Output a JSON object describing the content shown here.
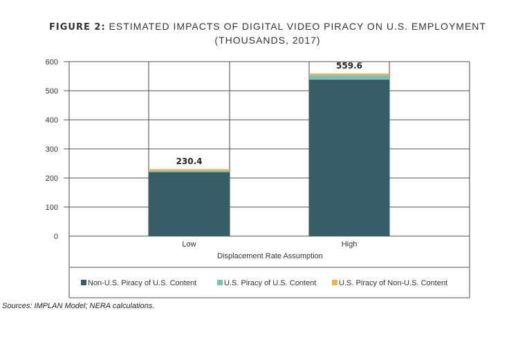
{
  "title": {
    "prefix": "FIGURE 2:",
    "line1": "ESTIMATED IMPACTS OF DIGITAL VIDEO PIRACY ON U.S. EMPLOYMENT",
    "line2": "(THOUSANDS, 2017)"
  },
  "source": "Sources: IMPLAN Model; NERA calculations.",
  "chart_data": {
    "type": "stacked-bar",
    "title": "ESTIMATED IMPACTS OF DIGITAL VIDEO PIRACY ON U.S. EMPLOYMENT (THOUSANDS, 2017)",
    "xlabel": "Displacement Rate Assumption",
    "ylabel": "",
    "ylim": [
      0,
      600
    ],
    "yticks": [
      0,
      100,
      200,
      300,
      400,
      500,
      600
    ],
    "grid": true,
    "legend": "bottom",
    "categories": [
      "Low",
      "High"
    ],
    "totals": [
      "230.4",
      "559.6"
    ],
    "series": [
      {
        "name": "Non-U.S. Piracy of U.S. Content",
        "color": "#375e66",
        "values": [
          220,
          538
        ]
      },
      {
        "name": "U.S. Piracy of U.S. Content",
        "color": "#7bbfb5",
        "values": [
          5,
          16
        ]
      },
      {
        "name": "U.S. Piracy of Non-U.S. Content",
        "color": "#f5b04f",
        "values": [
          5.4,
          5.6
        ]
      }
    ]
  }
}
